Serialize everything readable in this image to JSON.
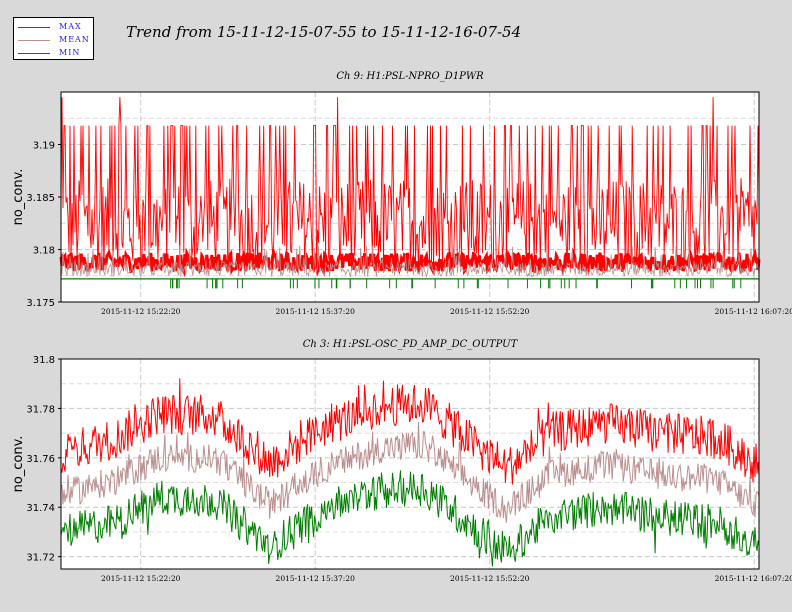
{
  "title": "Trend from 15-11-12-15-07-55 to 15-11-12-16-07-54",
  "legend": [
    {
      "label": "MAX",
      "color": "#ff0000"
    },
    {
      "label": "MEAN",
      "color": "#bc8f8f"
    },
    {
      "label": "MIN",
      "color": "#008000"
    }
  ],
  "chart_data": [
    {
      "type": "line",
      "title": "Ch 9: H1:PSL-NPRO_D1PWR",
      "ylabel": "no_conv.",
      "xlabel": "",
      "ylim": [
        3.175,
        3.195
      ],
      "yticks": [
        3.175,
        3.18,
        3.185,
        3.19
      ],
      "ytick_labels": [
        "3.175",
        "3.18",
        "3.185",
        "3.19"
      ],
      "xticks": [
        "2015-11-12 15:22:20",
        "2015-11-12 15:37:20",
        "2015-11-12 15:52:20",
        "2015-11-12 16:07:20"
      ],
      "grid": true,
      "series": [
        {
          "name": "MAX",
          "baseline": 3.1788,
          "spread_low": 3.1779,
          "spread_high": 3.1868,
          "spikes": 3.1918,
          "peak": 3.1945
        },
        {
          "name": "MEAN",
          "baseline": 3.1778,
          "spread_low": 3.1774,
          "spread_high": 3.1805
        },
        {
          "name": "MIN",
          "baseline": 3.1772,
          "dips": 3.1763
        }
      ]
    },
    {
      "type": "line",
      "title": "Ch 3: H1:PSL-OSC_PD_AMP_DC_OUTPUT",
      "ylabel": "no_conv.",
      "xlabel": "",
      "ylim": [
        31.715,
        31.8
      ],
      "yticks": [
        31.72,
        31.74,
        31.76,
        31.78,
        31.8
      ],
      "ytick_labels": [
        "31.72",
        "31.74",
        "31.76",
        "31.78",
        "31.8"
      ],
      "xticks": [
        "2015-11-12 15:22:20",
        "2015-11-12 15:37:20",
        "2015-11-12 15:52:20",
        "2015-11-12 16:07:20"
      ],
      "grid": true,
      "envelope_t": [
        0,
        0.08,
        0.14,
        0.22,
        0.3,
        0.38,
        0.46,
        0.52,
        0.6,
        0.64,
        0.7,
        0.78,
        0.86,
        0.94,
        1
      ],
      "series": [
        {
          "name": "MAX",
          "values": [
            31.762,
            31.768,
            31.778,
            31.777,
            31.758,
            31.773,
            31.781,
            31.782,
            31.764,
            31.756,
            31.77,
            31.774,
            31.77,
            31.768,
            31.757
          ]
        },
        {
          "name": "MEAN",
          "values": [
            31.745,
            31.751,
            31.76,
            31.76,
            31.741,
            31.756,
            31.764,
            31.765,
            31.747,
            31.739,
            31.753,
            31.757,
            31.753,
            31.751,
            31.74
          ]
        },
        {
          "name": "MIN",
          "values": [
            31.73,
            31.734,
            31.744,
            31.743,
            31.724,
            31.74,
            31.747,
            31.748,
            31.73,
            31.722,
            31.736,
            31.74,
            31.736,
            31.734,
            31.724
          ]
        }
      ]
    }
  ]
}
